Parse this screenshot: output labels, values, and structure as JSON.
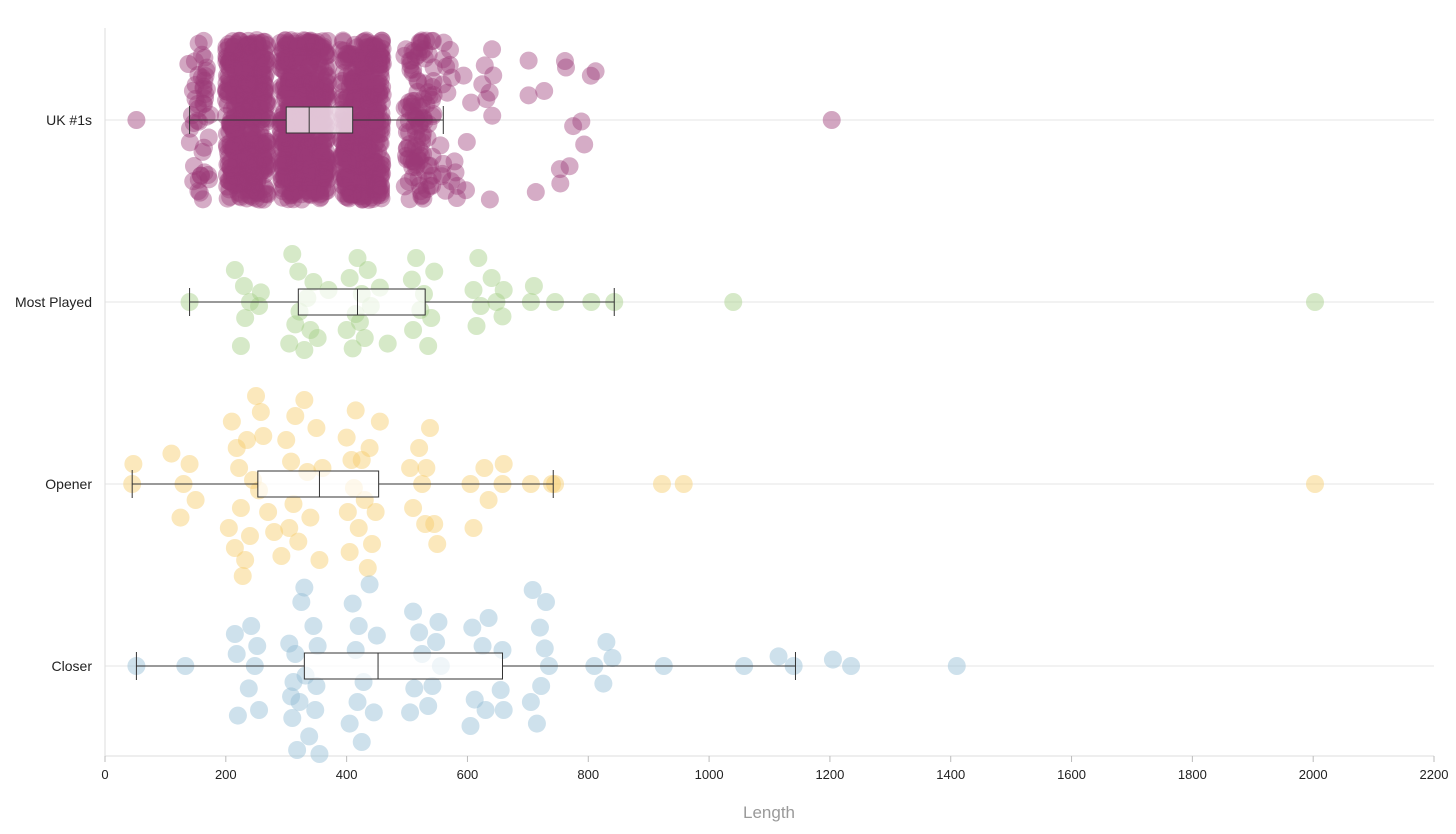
{
  "chart_data": {
    "type": "scatter",
    "subtype": "jittered strip plot with box plots",
    "xlabel": "Length",
    "xlim": [
      0,
      2200
    ],
    "xticks": [
      0,
      200,
      400,
      600,
      800,
      1000,
      1200,
      1400,
      1600,
      1800,
      2000,
      2200
    ],
    "grid": "horizontal lines at each category",
    "series": [
      {
        "name": "UK #1s",
        "color": "#9b3a76",
        "box": {
          "whisker_low": 140,
          "q1": 300,
          "median": 338,
          "q3": 410,
          "whisker_high": 560
        },
        "points": [
          {
            "x": 52,
            "j": 0
          },
          {
            "x": 138,
            "j": -0.7
          },
          {
            "x": 1203,
            "j": 0
          }
        ],
        "dense_bands": [
          {
            "from": 140,
            "to": 175,
            "n": 45
          },
          {
            "from": 200,
            "to": 270,
            "n": 420
          },
          {
            "from": 290,
            "to": 370,
            "n": 520
          },
          {
            "from": 390,
            "to": 460,
            "n": 420
          },
          {
            "from": 495,
            "to": 545,
            "n": 110
          },
          {
            "from": 555,
            "to": 650,
            "n": 30
          },
          {
            "from": 690,
            "to": 815,
            "n": 14
          }
        ]
      },
      {
        "name": "Most Played",
        "color": "#a3cf86",
        "box": {
          "whisker_low": 140,
          "q1": 320,
          "median": 418,
          "q3": 530,
          "whisker_high": 843
        },
        "points": [
          {
            "x": 140,
            "j": 0
          },
          {
            "x": 215,
            "j": -0.4
          },
          {
            "x": 225,
            "j": 0.55
          },
          {
            "x": 230,
            "j": -0.2
          },
          {
            "x": 232,
            "j": 0.2
          },
          {
            "x": 240,
            "j": 0
          },
          {
            "x": 255,
            "j": 0.05
          },
          {
            "x": 258,
            "j": -0.12
          },
          {
            "x": 305,
            "j": 0.52
          },
          {
            "x": 310,
            "j": -0.6
          },
          {
            "x": 315,
            "j": 0.28
          },
          {
            "x": 320,
            "j": -0.38
          },
          {
            "x": 322,
            "j": 0.12
          },
          {
            "x": 330,
            "j": 0.6
          },
          {
            "x": 335,
            "j": -0.05
          },
          {
            "x": 340,
            "j": 0.35
          },
          {
            "x": 345,
            "j": -0.25
          },
          {
            "x": 352,
            "j": 0.45
          },
          {
            "x": 370,
            "j": -0.15
          },
          {
            "x": 400,
            "j": 0.35
          },
          {
            "x": 405,
            "j": -0.3
          },
          {
            "x": 410,
            "j": 0.58
          },
          {
            "x": 415,
            "j": 0.15
          },
          {
            "x": 418,
            "j": -0.55
          },
          {
            "x": 422,
            "j": 0.25
          },
          {
            "x": 425,
            "j": -0.1
          },
          {
            "x": 430,
            "j": 0.45
          },
          {
            "x": 435,
            "j": -0.4
          },
          {
            "x": 440,
            "j": 0.05
          },
          {
            "x": 455,
            "j": -0.18
          },
          {
            "x": 468,
            "j": 0.52
          },
          {
            "x": 508,
            "j": -0.28
          },
          {
            "x": 510,
            "j": 0.35
          },
          {
            "x": 515,
            "j": -0.55
          },
          {
            "x": 522,
            "j": 0.1
          },
          {
            "x": 528,
            "j": -0.1
          },
          {
            "x": 535,
            "j": 0.55
          },
          {
            "x": 540,
            "j": 0.2
          },
          {
            "x": 545,
            "j": -0.38
          },
          {
            "x": 610,
            "j": -0.15
          },
          {
            "x": 615,
            "j": 0.3
          },
          {
            "x": 618,
            "j": -0.55
          },
          {
            "x": 622,
            "j": 0.05
          },
          {
            "x": 640,
            "j": -0.3
          },
          {
            "x": 648,
            "j": 0
          },
          {
            "x": 658,
            "j": 0.18
          },
          {
            "x": 660,
            "j": -0.15
          },
          {
            "x": 705,
            "j": 0
          },
          {
            "x": 710,
            "j": -0.2
          },
          {
            "x": 745,
            "j": 0
          },
          {
            "x": 805,
            "j": 0
          },
          {
            "x": 843,
            "j": 0
          },
          {
            "x": 1040,
            "j": 0
          },
          {
            "x": 2003,
            "j": 0
          }
        ]
      },
      {
        "name": "Opener",
        "color": "#f7cb6a",
        "box": {
          "whisker_low": 45,
          "q1": 253,
          "median": 355,
          "q3": 453,
          "whisker_high": 742
        },
        "points": [
          {
            "x": 45,
            "j": 0
          },
          {
            "x": 47,
            "j": -0.25
          },
          {
            "x": 110,
            "j": -0.38
          },
          {
            "x": 125,
            "j": 0.42
          },
          {
            "x": 130,
            "j": 0
          },
          {
            "x": 140,
            "j": -0.25
          },
          {
            "x": 150,
            "j": 0.2
          },
          {
            "x": 205,
            "j": 0.55
          },
          {
            "x": 210,
            "j": -0.78
          },
          {
            "x": 215,
            "j": 0.8
          },
          {
            "x": 218,
            "j": -0.45
          },
          {
            "x": 222,
            "j": -0.2
          },
          {
            "x": 225,
            "j": 0.3
          },
          {
            "x": 228,
            "j": 1.15
          },
          {
            "x": 232,
            "j": 0.95
          },
          {
            "x": 235,
            "j": -0.55
          },
          {
            "x": 240,
            "j": 0.65
          },
          {
            "x": 245,
            "j": -0.05
          },
          {
            "x": 250,
            "j": -1.1
          },
          {
            "x": 255,
            "j": 0.08
          },
          {
            "x": 258,
            "j": -0.9
          },
          {
            "x": 262,
            "j": -0.6
          },
          {
            "x": 270,
            "j": 0.35
          },
          {
            "x": 280,
            "j": 0.6
          },
          {
            "x": 292,
            "j": 0.9
          },
          {
            "x": 300,
            "j": -0.55
          },
          {
            "x": 305,
            "j": 0.55
          },
          {
            "x": 308,
            "j": -0.28
          },
          {
            "x": 312,
            "j": 0.25
          },
          {
            "x": 315,
            "j": -0.85
          },
          {
            "x": 320,
            "j": 0.72
          },
          {
            "x": 330,
            "j": -1.05
          },
          {
            "x": 335,
            "j": -0.15
          },
          {
            "x": 340,
            "j": 0.42
          },
          {
            "x": 350,
            "j": -0.7
          },
          {
            "x": 355,
            "j": 0.95
          },
          {
            "x": 360,
            "j": -0.2
          },
          {
            "x": 400,
            "j": -0.58
          },
          {
            "x": 402,
            "j": 0.35
          },
          {
            "x": 405,
            "j": 0.85
          },
          {
            "x": 408,
            "j": -0.3
          },
          {
            "x": 412,
            "j": 0.05
          },
          {
            "x": 415,
            "j": -0.92
          },
          {
            "x": 420,
            "j": 0.55
          },
          {
            "x": 425,
            "j": -0.3
          },
          {
            "x": 430,
            "j": 0.2
          },
          {
            "x": 435,
            "j": 1.05
          },
          {
            "x": 438,
            "j": -0.45
          },
          {
            "x": 442,
            "j": 0.75
          },
          {
            "x": 448,
            "j": 0.35
          },
          {
            "x": 455,
            "j": -0.78
          },
          {
            "x": 505,
            "j": -0.2
          },
          {
            "x": 510,
            "j": 0.3
          },
          {
            "x": 520,
            "j": -0.45
          },
          {
            "x": 525,
            "j": 0
          },
          {
            "x": 530,
            "j": 0.5
          },
          {
            "x": 532,
            "j": -0.2
          },
          {
            "x": 538,
            "j": -0.7
          },
          {
            "x": 545,
            "j": 0.5
          },
          {
            "x": 550,
            "j": 0.75
          },
          {
            "x": 605,
            "j": 0
          },
          {
            "x": 610,
            "j": 0.55
          },
          {
            "x": 628,
            "j": -0.2
          },
          {
            "x": 635,
            "j": 0.2
          },
          {
            "x": 658,
            "j": 0
          },
          {
            "x": 660,
            "j": -0.25
          },
          {
            "x": 705,
            "j": 0
          },
          {
            "x": 740,
            "j": 0
          },
          {
            "x": 745,
            "j": 0
          },
          {
            "x": 922,
            "j": 0
          },
          {
            "x": 958,
            "j": 0
          },
          {
            "x": 2003,
            "j": 0
          }
        ]
      },
      {
        "name": "Closer",
        "color": "#93bdd4",
        "box": {
          "whisker_low": 52,
          "q1": 330,
          "median": 452,
          "q3": 658,
          "whisker_high": 1143
        },
        "points": [
          {
            "x": 52,
            "j": 0
          },
          {
            "x": 133,
            "j": 0
          },
          {
            "x": 215,
            "j": -0.4
          },
          {
            "x": 218,
            "j": -0.15
          },
          {
            "x": 220,
            "j": 0.62
          },
          {
            "x": 238,
            "j": 0.28
          },
          {
            "x": 242,
            "j": -0.5
          },
          {
            "x": 248,
            "j": 0
          },
          {
            "x": 252,
            "j": -0.25
          },
          {
            "x": 255,
            "j": 0.55
          },
          {
            "x": 305,
            "j": -0.28
          },
          {
            "x": 308,
            "j": 0.38
          },
          {
            "x": 310,
            "j": 0.65
          },
          {
            "x": 312,
            "j": 0.2
          },
          {
            "x": 315,
            "j": -0.15
          },
          {
            "x": 318,
            "j": 1.05
          },
          {
            "x": 322,
            "j": 0.45
          },
          {
            "x": 325,
            "j": -0.8
          },
          {
            "x": 330,
            "j": -0.98
          },
          {
            "x": 332,
            "j": 0.12
          },
          {
            "x": 338,
            "j": 0.88
          },
          {
            "x": 345,
            "j": -0.5
          },
          {
            "x": 348,
            "j": 0.55
          },
          {
            "x": 350,
            "j": 0.25
          },
          {
            "x": 352,
            "j": -0.25
          },
          {
            "x": 355,
            "j": 1.1
          },
          {
            "x": 405,
            "j": 0.72
          },
          {
            "x": 410,
            "j": -0.78
          },
          {
            "x": 415,
            "j": -0.2
          },
          {
            "x": 418,
            "j": 0.45
          },
          {
            "x": 420,
            "j": -0.5
          },
          {
            "x": 425,
            "j": 0.95
          },
          {
            "x": 428,
            "j": 0.2
          },
          {
            "x": 438,
            "j": -1.02
          },
          {
            "x": 445,
            "j": 0.58
          },
          {
            "x": 450,
            "j": -0.38
          },
          {
            "x": 505,
            "j": 0.58
          },
          {
            "x": 510,
            "j": -0.68
          },
          {
            "x": 512,
            "j": 0.28
          },
          {
            "x": 520,
            "j": -0.42
          },
          {
            "x": 525,
            "j": -0.15
          },
          {
            "x": 535,
            "j": 0.5
          },
          {
            "x": 542,
            "j": 0.25
          },
          {
            "x": 548,
            "j": -0.3
          },
          {
            "x": 552,
            "j": -0.55
          },
          {
            "x": 556,
            "j": 0
          },
          {
            "x": 605,
            "j": 0.75
          },
          {
            "x": 608,
            "j": -0.48
          },
          {
            "x": 612,
            "j": 0.42
          },
          {
            "x": 625,
            "j": -0.25
          },
          {
            "x": 630,
            "j": 0.55
          },
          {
            "x": 635,
            "j": -0.6
          },
          {
            "x": 655,
            "j": 0.3
          },
          {
            "x": 658,
            "j": -0.2
          },
          {
            "x": 660,
            "j": 0.55
          },
          {
            "x": 705,
            "j": 0.45
          },
          {
            "x": 708,
            "j": -0.95
          },
          {
            "x": 715,
            "j": 0.72
          },
          {
            "x": 720,
            "j": -0.48
          },
          {
            "x": 722,
            "j": 0.25
          },
          {
            "x": 728,
            "j": -0.22
          },
          {
            "x": 730,
            "j": -0.8
          },
          {
            "x": 735,
            "j": 0
          },
          {
            "x": 810,
            "j": 0
          },
          {
            "x": 825,
            "j": 0.22
          },
          {
            "x": 830,
            "j": -0.3
          },
          {
            "x": 840,
            "j": -0.1
          },
          {
            "x": 925,
            "j": 0
          },
          {
            "x": 1058,
            "j": 0
          },
          {
            "x": 1115,
            "j": -0.12
          },
          {
            "x": 1140,
            "j": 0
          },
          {
            "x": 1205,
            "j": -0.08
          },
          {
            "x": 1235,
            "j": 0
          },
          {
            "x": 1410,
            "j": 0
          }
        ]
      }
    ]
  }
}
